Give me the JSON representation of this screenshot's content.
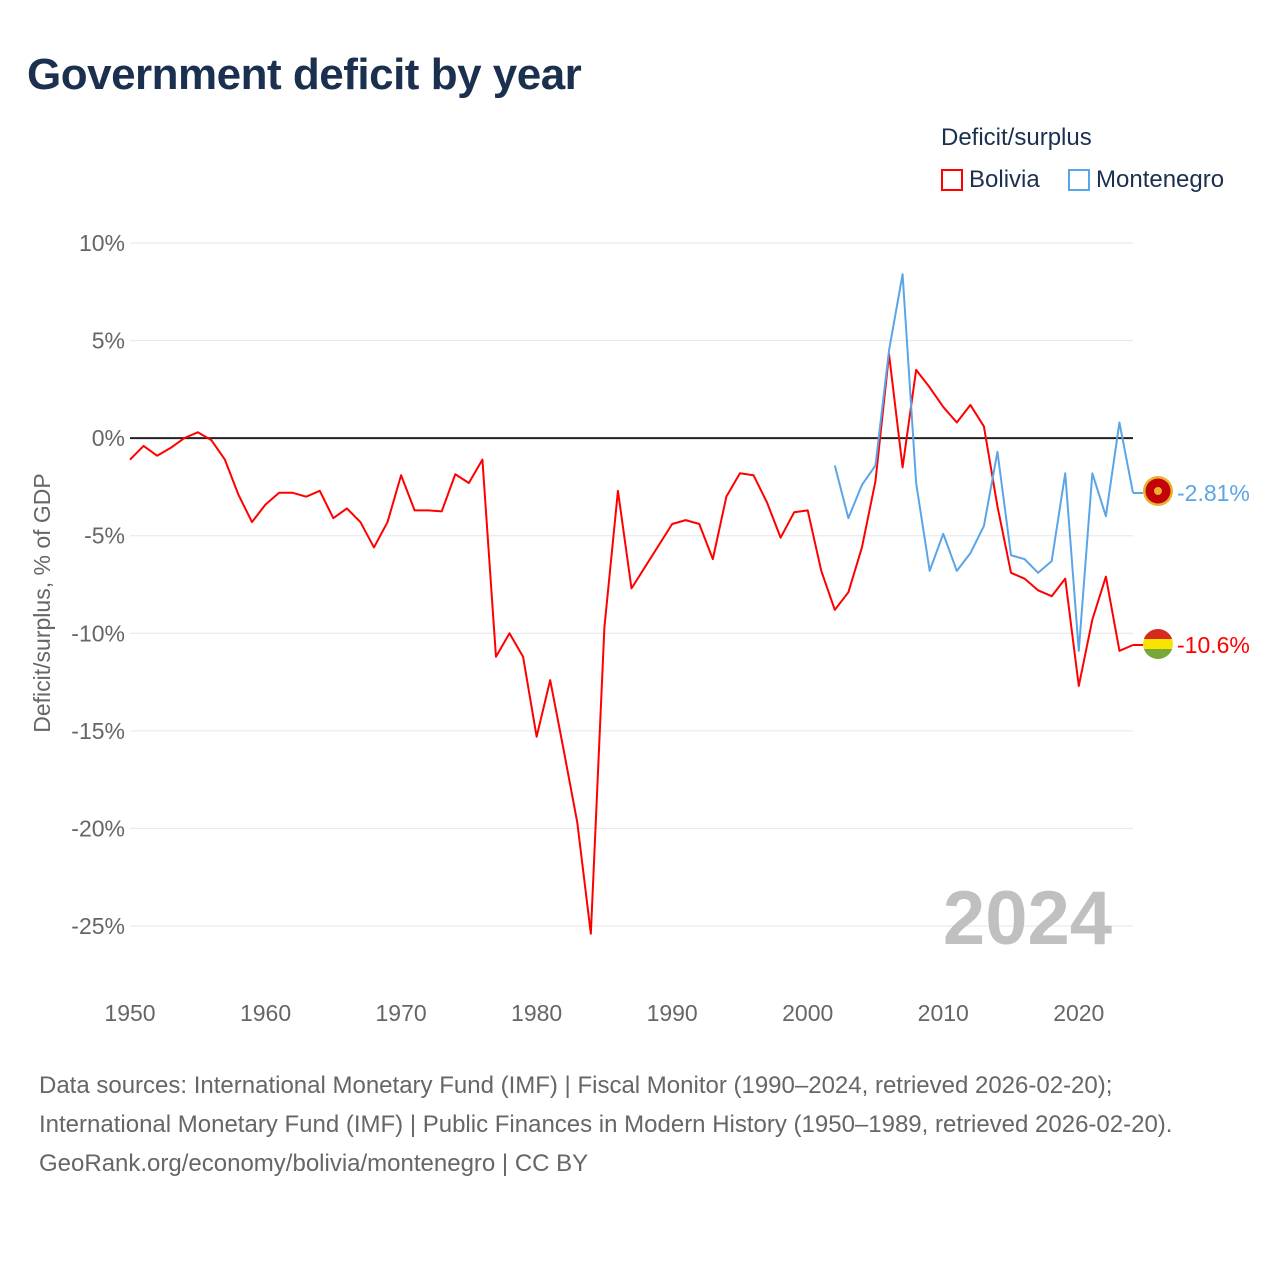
{
  "title": "Government deficit by year",
  "legend": {
    "title": "Deficit/surplus",
    "items": [
      {
        "name": "Bolivia",
        "color": "#ff0000"
      },
      {
        "name": "Montenegro",
        "color": "#5aa5e8"
      }
    ]
  },
  "year_watermark": "2024",
  "footer": {
    "sources": "Data sources: International Monetary Fund (IMF) | Fiscal Monitor (1990–2024, retrieved 2026-02-20); International Monetary Fund (IMF) | Public Finances in Modern History (1950–1989, retrieved 2026-02-20).",
    "credit": "GeoRank.org/economy/bolivia/montenegro | CC BY"
  },
  "chart_data": {
    "type": "line",
    "title": "Government deficit by year",
    "ylabel": "Deficit/surplus, % of GDP",
    "xlabel": "",
    "xlim": [
      1950,
      2024
    ],
    "ylim": [
      -25,
      10
    ],
    "y_ticks": [
      10,
      5,
      0,
      -5,
      -10,
      -15,
      -20,
      -25
    ],
    "y_tick_labels": [
      "10%",
      "5%",
      "0%",
      "-5%",
      "-10%",
      "-15%",
      "-20%",
      "-25%"
    ],
    "x_ticks": [
      1950,
      1960,
      1970,
      1980,
      1990,
      2000,
      2010,
      2020
    ],
    "x_tick_labels": [
      "1950",
      "1960",
      "1970",
      "1980",
      "1990",
      "2000",
      "2010",
      "2020"
    ],
    "grid": true,
    "legend_position": "top-right",
    "series": [
      {
        "name": "Bolivia",
        "color": "#ff0000",
        "end_label": "-10.6%",
        "start_year": 1950,
        "values": [
          -1.1,
          -0.4,
          -0.9,
          -0.5,
          0,
          0.3,
          -0.1,
          -1.1,
          -2.9,
          -4.3,
          -3.4,
          -2.8,
          -2.8,
          -3.0,
          -2.7,
          -4.1,
          -3.6,
          -4.3,
          -5.6,
          -4.3,
          -1.9,
          -3.7,
          -3.7,
          -3.75,
          -1.85,
          -2.3,
          -1.1,
          -11.2,
          -10.0,
          -11.2,
          -15.3,
          -12.4,
          -16.0,
          -19.7,
          -25.4,
          -9.7,
          -2.7,
          -7.7,
          -6.6,
          -5.5,
          -4.4,
          -4.2,
          -4.4,
          -6.2,
          -3.0,
          -1.8,
          -1.9,
          -3.3,
          -5.1,
          -3.8,
          -3.7,
          -6.8,
          -8.8,
          -7.9,
          -5.6,
          -2.2,
          4.3,
          -1.5,
          3.5,
          2.6,
          1.6,
          0.8,
          1.7,
          0.6,
          -3.5,
          -6.9,
          -7.2,
          -7.8,
          -8.1,
          -7.2,
          -12.7,
          -9.3,
          -7.1,
          -10.9,
          -10.6
        ]
      },
      {
        "name": "Montenegro",
        "color": "#5aa5e8",
        "end_label": "-2.81%",
        "start_year": 2002,
        "values": [
          -1.4,
          -4.1,
          -2.4,
          -1.4,
          4.5,
          8.4,
          -2.3,
          -6.8,
          -4.9,
          -6.8,
          -5.9,
          -4.5,
          -0.7,
          -6.0,
          -6.2,
          -6.9,
          -6.3,
          -1.8,
          -10.9,
          -1.8,
          -4.0,
          0.8,
          -2.81
        ]
      }
    ]
  }
}
